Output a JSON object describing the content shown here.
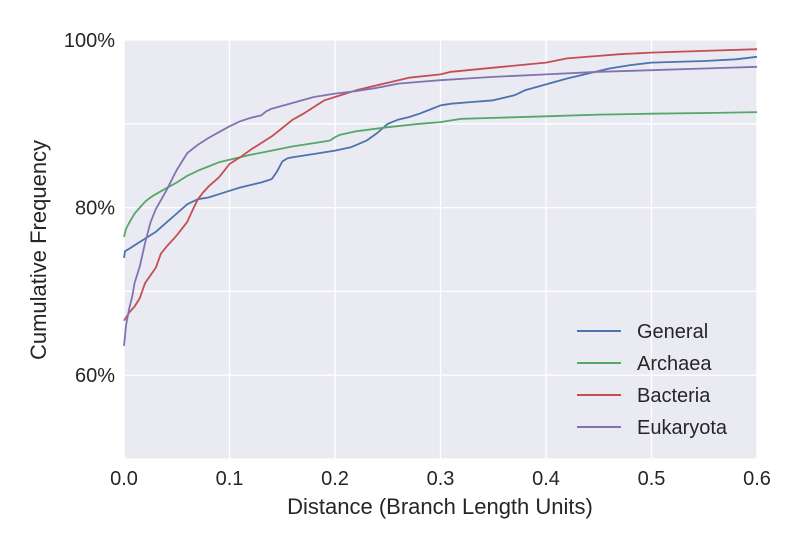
{
  "chart_data": {
    "type": "line",
    "title": "",
    "xlabel": "Distance (Branch Length Units)",
    "ylabel": "Cumulative Frequency",
    "xlim": [
      0.0,
      0.6
    ],
    "ylim": [
      50,
      100
    ],
    "xticks": [
      0.0,
      0.1,
      0.2,
      0.3,
      0.4,
      0.5,
      0.6
    ],
    "xtick_labels": [
      "0.0",
      "0.1",
      "0.2",
      "0.3",
      "0.4",
      "0.5",
      "0.6"
    ],
    "yticks": [
      60,
      80,
      100
    ],
    "ytick_labels": [
      "60%",
      "80%",
      "100%"
    ],
    "grid": true,
    "legend_position": "lower-right",
    "series": [
      {
        "name": "General",
        "color": "#4c72b0",
        "x": [
          0.0,
          0.001,
          0.005,
          0.01,
          0.02,
          0.03,
          0.04,
          0.05,
          0.06,
          0.07,
          0.08,
          0.09,
          0.1,
          0.11,
          0.12,
          0.13,
          0.14,
          0.145,
          0.15,
          0.155,
          0.16,
          0.18,
          0.2,
          0.215,
          0.23,
          0.24,
          0.25,
          0.26,
          0.27,
          0.28,
          0.29,
          0.3,
          0.31,
          0.33,
          0.35,
          0.37,
          0.38,
          0.4,
          0.42,
          0.44,
          0.46,
          0.48,
          0.5,
          0.55,
          0.58,
          0.6
        ],
        "y": [
          74.0,
          74.8,
          75.1,
          75.5,
          76.3,
          77.1,
          78.2,
          79.3,
          80.4,
          81.0,
          81.2,
          81.6,
          82.0,
          82.4,
          82.7,
          83.0,
          83.4,
          84.3,
          85.5,
          85.9,
          86.0,
          86.4,
          86.8,
          87.2,
          88.0,
          88.9,
          90.0,
          90.5,
          90.8,
          91.2,
          91.7,
          92.2,
          92.4,
          92.6,
          92.8,
          93.4,
          94.0,
          94.7,
          95.4,
          96.0,
          96.6,
          97.0,
          97.3,
          97.5,
          97.7,
          98.0
        ]
      },
      {
        "name": "Archaea",
        "color": "#55a868",
        "x": [
          0.0,
          0.002,
          0.005,
          0.01,
          0.015,
          0.02,
          0.025,
          0.03,
          0.04,
          0.05,
          0.06,
          0.07,
          0.08,
          0.09,
          0.1,
          0.12,
          0.14,
          0.16,
          0.18,
          0.195,
          0.2,
          0.205,
          0.22,
          0.25,
          0.28,
          0.3,
          0.31,
          0.32,
          0.35,
          0.4,
          0.45,
          0.5,
          0.56,
          0.6
        ],
        "y": [
          76.5,
          77.5,
          78.2,
          79.3,
          80.0,
          80.7,
          81.2,
          81.6,
          82.3,
          83.0,
          83.8,
          84.4,
          84.9,
          85.4,
          85.7,
          86.3,
          86.8,
          87.3,
          87.7,
          88.0,
          88.4,
          88.7,
          89.1,
          89.6,
          90.0,
          90.2,
          90.4,
          90.6,
          90.7,
          90.9,
          91.1,
          91.2,
          91.3,
          91.4
        ]
      },
      {
        "name": "Bacteria",
        "color": "#c44e52",
        "x": [
          0.0,
          0.005,
          0.01,
          0.015,
          0.02,
          0.03,
          0.035,
          0.04,
          0.05,
          0.06,
          0.065,
          0.07,
          0.075,
          0.08,
          0.09,
          0.1,
          0.11,
          0.12,
          0.13,
          0.14,
          0.15,
          0.16,
          0.17,
          0.18,
          0.19,
          0.2,
          0.22,
          0.25,
          0.27,
          0.3,
          0.31,
          0.35,
          0.4,
          0.42,
          0.45,
          0.47,
          0.5,
          0.55,
          0.6
        ],
        "y": [
          66.5,
          67.5,
          68.2,
          69.2,
          71.0,
          72.8,
          74.5,
          75.3,
          76.7,
          78.3,
          79.7,
          81.0,
          81.8,
          82.5,
          83.6,
          85.2,
          86.0,
          86.9,
          87.7,
          88.5,
          89.5,
          90.5,
          91.2,
          92.0,
          92.8,
          93.2,
          94.0,
          94.9,
          95.5,
          95.9,
          96.2,
          96.7,
          97.3,
          97.8,
          98.1,
          98.3,
          98.5,
          98.7,
          98.9
        ]
      },
      {
        "name": "Eukaryota",
        "color": "#8172b2",
        "x": [
          0.0,
          0.002,
          0.005,
          0.008,
          0.01,
          0.015,
          0.02,
          0.025,
          0.03,
          0.04,
          0.05,
          0.06,
          0.07,
          0.08,
          0.09,
          0.1,
          0.11,
          0.12,
          0.13,
          0.135,
          0.14,
          0.16,
          0.18,
          0.2,
          0.22,
          0.24,
          0.26,
          0.28,
          0.3,
          0.35,
          0.4,
          0.45,
          0.5,
          0.55,
          0.6
        ],
        "y": [
          63.5,
          66.0,
          68.0,
          69.5,
          71.0,
          73.0,
          75.8,
          78.2,
          79.8,
          82.0,
          84.5,
          86.5,
          87.5,
          88.3,
          89.0,
          89.7,
          90.3,
          90.7,
          91.0,
          91.5,
          91.8,
          92.5,
          93.2,
          93.6,
          93.9,
          94.3,
          94.8,
          95.0,
          95.2,
          95.6,
          95.9,
          96.2,
          96.4,
          96.6,
          96.8
        ]
      }
    ]
  }
}
